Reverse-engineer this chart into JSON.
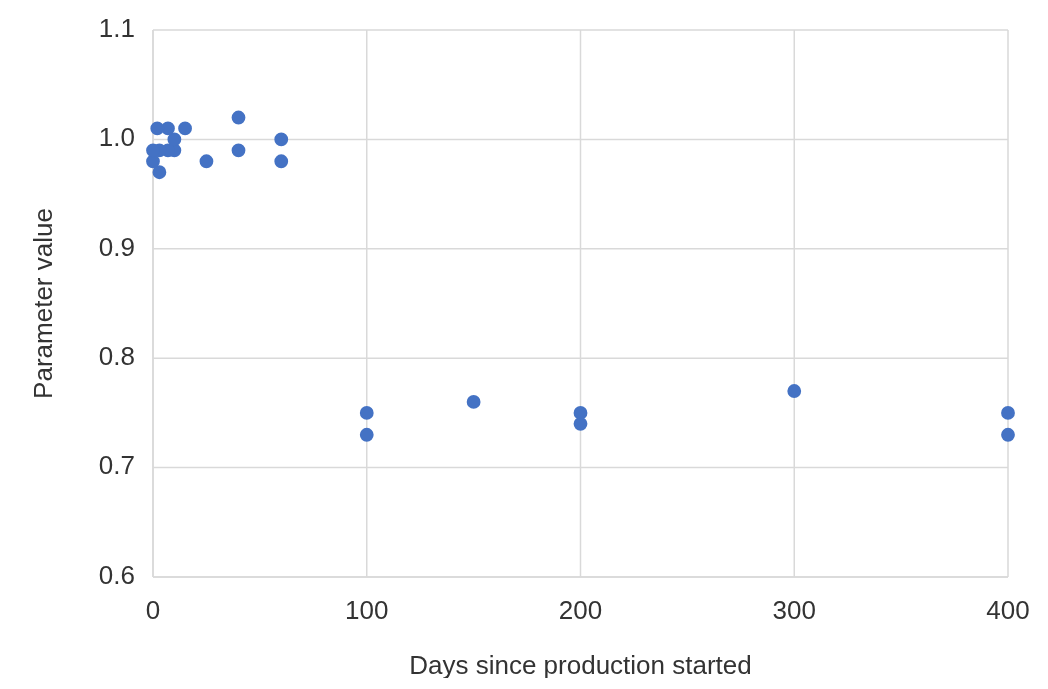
{
  "chart_data": {
    "type": "scatter",
    "xlabel": "Days since production started",
    "ylabel": "Parameter value",
    "x": [
      0,
      0,
      2,
      3,
      3,
      7,
      7,
      10,
      10,
      15,
      25,
      40,
      40,
      60,
      60,
      100,
      100,
      150,
      200,
      200,
      300,
      400,
      400
    ],
    "values": [
      0.99,
      0.98,
      1.01,
      0.97,
      0.99,
      1.01,
      0.99,
      1.0,
      0.99,
      1.01,
      0.98,
      1.02,
      0.99,
      1.0,
      0.98,
      0.75,
      0.73,
      0.76,
      0.75,
      0.74,
      0.77,
      0.75,
      0.73
    ],
    "color": "#4472c4",
    "xlim": [
      0,
      400
    ],
    "xticks": [
      0,
      100,
      200,
      300,
      400
    ],
    "ylim": [
      0.6,
      1.1
    ],
    "yticks": [
      {
        "value": 0.6,
        "label": "0.6"
      },
      {
        "value": 0.7,
        "label": "0.7"
      },
      {
        "value": 0.8,
        "label": "0.8"
      },
      {
        "value": 0.9,
        "label": "0.9"
      },
      {
        "value": 1.0,
        "label": "1.0"
      },
      {
        "value": 1.1,
        "label": "1.1"
      }
    ],
    "grid": true,
    "marker": "circle"
  }
}
